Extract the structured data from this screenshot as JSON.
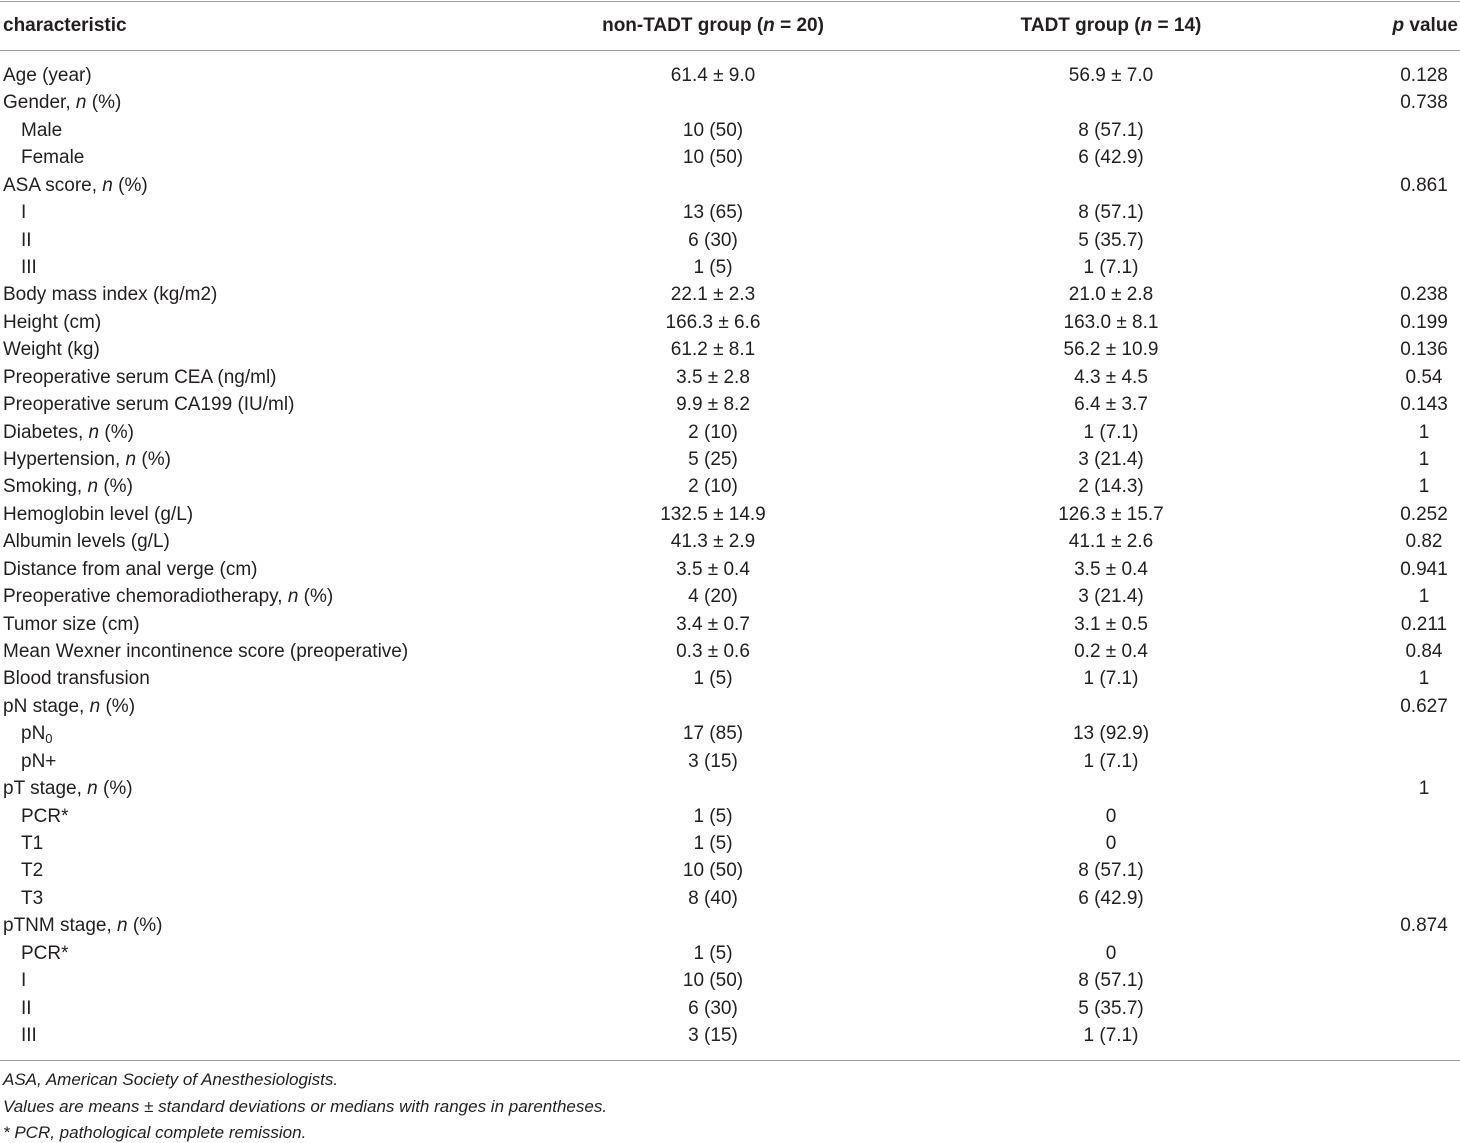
{
  "table": {
    "header": [
      [
        "characteristic"
      ],
      [
        "non-TADT group (",
        {
          "italic": "n"
        },
        " = 20)"
      ],
      [
        "TADT group (",
        {
          "italic": "n"
        },
        " = 14)"
      ],
      [
        {
          "italic": "p"
        },
        " value"
      ]
    ],
    "rows": [
      {
        "label": [
          "Age (year)"
        ],
        "non_tadt": "61.4 ± 9.0",
        "tadt": "56.9 ± 7.0",
        "p": "0.128"
      },
      {
        "label": [
          "Gender, ",
          {
            "italic": "n"
          },
          " (%)"
        ],
        "p": "0.738",
        "items": [
          {
            "label": [
              "Male"
            ],
            "non_tadt": "10 (50)",
            "tadt": "8 (57.1)"
          },
          {
            "label": [
              "Female"
            ],
            "non_tadt": "10 (50)",
            "tadt": "6 (42.9)"
          }
        ]
      },
      {
        "label": [
          "ASA score, ",
          {
            "italic": "n"
          },
          " (%)"
        ],
        "p": "0.861",
        "items": [
          {
            "label": [
              "I"
            ],
            "non_tadt": "13 (65)",
            "tadt": "8 (57.1)"
          },
          {
            "label": [
              "II"
            ],
            "non_tadt": "6 (30)",
            "tadt": "5 (35.7)"
          },
          {
            "label": [
              "III"
            ],
            "non_tadt": "1 (5)",
            "tadt": "1 (7.1)"
          }
        ]
      },
      {
        "label": [
          "Body mass index (kg/m2)"
        ],
        "non_tadt": "22.1 ± 2.3",
        "tadt": "21.0 ± 2.8",
        "p": "0.238"
      },
      {
        "label": [
          "Height (cm)"
        ],
        "non_tadt": "166.3 ± 6.6",
        "tadt": "163.0 ± 8.1",
        "p": "0.199"
      },
      {
        "label": [
          "Weight (kg)"
        ],
        "non_tadt": "61.2 ± 8.1",
        "tadt": "56.2 ± 10.9",
        "p": "0.136"
      },
      {
        "label": [
          "Preoperative serum CEA (ng/ml)"
        ],
        "non_tadt": "3.5 ± 2.8",
        "tadt": "4.3 ± 4.5",
        "p": "0.54"
      },
      {
        "label": [
          "Preoperative serum CA199 (IU/ml)"
        ],
        "non_tadt": "9.9 ± 8.2",
        "tadt": "6.4 ± 3.7",
        "p": "0.143"
      },
      {
        "label": [
          "Diabetes, ",
          {
            "italic": "n"
          },
          " (%)"
        ],
        "non_tadt": "2 (10)",
        "tadt": "1 (7.1)",
        "p": "1"
      },
      {
        "label": [
          "Hypertension, ",
          {
            "italic": "n"
          },
          " (%)"
        ],
        "non_tadt": "5 (25)",
        "tadt": "3 (21.4)",
        "p": "1"
      },
      {
        "label": [
          "Smoking, ",
          {
            "italic": "n"
          },
          " (%)"
        ],
        "non_tadt": "2 (10)",
        "tadt": "2 (14.3)",
        "p": "1"
      },
      {
        "label": [
          "Hemoglobin level (g/L)"
        ],
        "non_tadt": "132.5 ± 14.9",
        "tadt": "126.3 ± 15.7",
        "p": "0.252"
      },
      {
        "label": [
          "Albumin levels (g/L)"
        ],
        "non_tadt": "41.3 ± 2.9",
        "tadt": "41.1 ± 2.6",
        "p": "0.82"
      },
      {
        "label": [
          "Distance from anal verge (cm)"
        ],
        "non_tadt": "3.5 ± 0.4",
        "tadt": "3.5 ± 0.4",
        "p": "0.941"
      },
      {
        "label": [
          "Preoperative chemoradiotherapy, ",
          {
            "italic": "n"
          },
          " (%)"
        ],
        "non_tadt": "4 (20)",
        "tadt": "3 (21.4)",
        "p": "1"
      },
      {
        "label": [
          "Tumor size (cm)"
        ],
        "non_tadt": "3.4 ± 0.7",
        "tadt": "3.1 ± 0.5",
        "p": "0.211"
      },
      {
        "label": [
          "Mean Wexner incontinence score (preoperative)"
        ],
        "non_tadt": "0.3 ± 0.6",
        "tadt": "0.2 ± 0.4",
        "p": "0.84"
      },
      {
        "label": [
          "Blood transfusion"
        ],
        "non_tadt": "1 (5)",
        "tadt": "1 (7.1)",
        "p": "1"
      },
      {
        "label": [
          "pN stage, ",
          {
            "italic": "n"
          },
          " (%)"
        ],
        "p": "0.627",
        "items": [
          {
            "label": [
              "pN",
              {
                "sub": "0"
              }
            ],
            "non_tadt": "17 (85)",
            "tadt": "13 (92.9)"
          },
          {
            "label": [
              "pN+"
            ],
            "non_tadt": "3 (15)",
            "tadt": "1 (7.1)"
          }
        ]
      },
      {
        "label": [
          "pT stage, ",
          {
            "italic": "n"
          },
          " (%)"
        ],
        "p": "1",
        "items": [
          {
            "label": [
              "PCR*"
            ],
            "non_tadt": "1 (5)",
            "tadt": "0"
          },
          {
            "label": [
              "T1"
            ],
            "non_tadt": "1 (5)",
            "tadt": "0"
          },
          {
            "label": [
              "T2"
            ],
            "non_tadt": "10 (50)",
            "tadt": "8 (57.1)"
          },
          {
            "label": [
              "T3"
            ],
            "non_tadt": "8 (40)",
            "tadt": "6 (42.9)"
          }
        ]
      },
      {
        "label": [
          "pTNM stage, ",
          {
            "italic": "n"
          },
          " (%)"
        ],
        "p": "0.874",
        "items": [
          {
            "label": [
              "PCR*"
            ],
            "non_tadt": "1 (5)",
            "tadt": "0"
          },
          {
            "label": [
              "I"
            ],
            "non_tadt": "10 (50)",
            "tadt": "8 (57.1)"
          },
          {
            "label": [
              "II"
            ],
            "non_tadt": "6 (30)",
            "tadt": "5 (35.7)"
          },
          {
            "label": [
              "III"
            ],
            "non_tadt": "3 (15)",
            "tadt": "1 (7.1)"
          }
        ]
      }
    ],
    "footnotes": [
      "ASA, American Society of Anesthesiologists.",
      "Values are means ± standard deviations or medians with ranges in parentheses.",
      "* PCR, pathological complete remission."
    ]
  }
}
